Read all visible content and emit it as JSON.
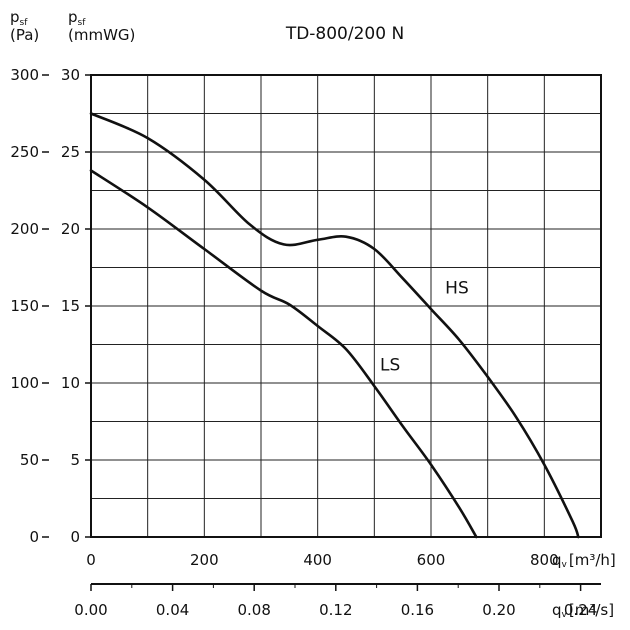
{
  "chart_data": {
    "type": "line",
    "title": "TD-800/200 N",
    "y_left_label": {
      "main": "p",
      "sub": "sf",
      "unit": "(Pa)"
    },
    "y_right_label": {
      "main": "p",
      "sub": "sf",
      "unit": "(mmWG)"
    },
    "x_top_label": {
      "main": "q",
      "sub": "v",
      "unit": "[m³/h]"
    },
    "x_bottom_label": {
      "main": "q",
      "sub": "v",
      "unit": "[m³/s]"
    },
    "xlim": [
      0,
      900
    ],
    "ylim": [
      0,
      300
    ],
    "grid": true,
    "x_ticks_m3h": [
      "0",
      "200",
      "400",
      "600",
      "800"
    ],
    "x_ticks_m3s": [
      "0.00",
      "0.04",
      "0.08",
      "0.12",
      "0.16",
      "0.20",
      "0.24"
    ],
    "y_ticks_pa": [
      "0",
      "50",
      "100",
      "150",
      "200",
      "250",
      "300"
    ],
    "y_ticks_mmwg": [
      "0",
      "5",
      "10",
      "15",
      "20",
      "25",
      "30"
    ],
    "series": [
      {
        "name": "HS",
        "x": [
          0,
          100,
          200,
          280,
          340,
          400,
          450,
          500,
          550,
          600,
          650,
          700,
          750,
          800,
          850,
          860
        ],
        "y": [
          275,
          259,
          232,
          203,
          190,
          193,
          195,
          187,
          168,
          148,
          128,
          104,
          78,
          47,
          10,
          0
        ]
      },
      {
        "name": "LS",
        "x": [
          0,
          100,
          200,
          300,
          350,
          400,
          450,
          500,
          550,
          600,
          650,
          680
        ],
        "y": [
          238,
          214,
          187,
          160,
          151,
          137,
          122,
          98,
          72,
          47,
          19,
          0
        ]
      }
    ]
  }
}
